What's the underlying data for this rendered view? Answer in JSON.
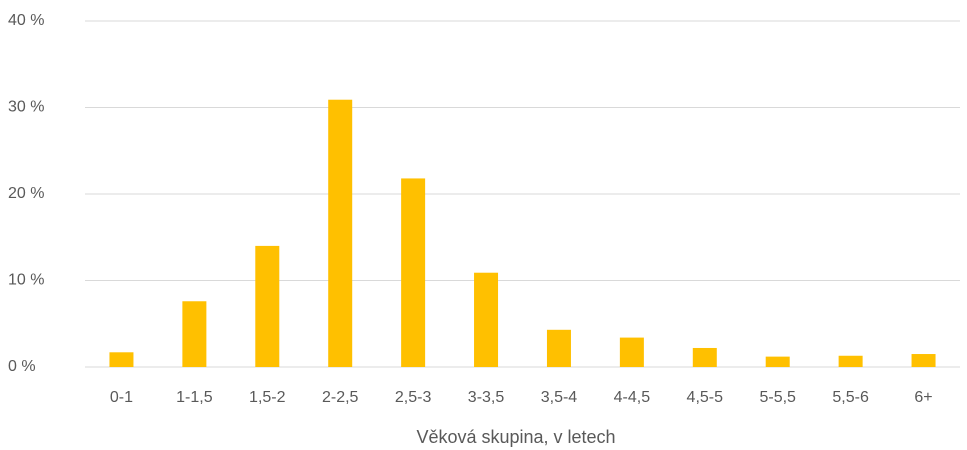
{
  "chart_data": {
    "type": "bar",
    "x_label": "Věková skupina, v letech",
    "categories": [
      "0-1",
      "1-1,5",
      "1,5-2",
      "2-2,5",
      "2,5-3",
      "3-3,5",
      "3,5-4",
      "4-4,5",
      "4,5-5",
      "5-5,5",
      "5,5-6",
      "6+"
    ],
    "values": [
      1.7,
      7.6,
      14.0,
      30.9,
      21.8,
      10.9,
      4.3,
      3.4,
      2.2,
      1.2,
      1.3,
      1.5
    ],
    "color": "#ffc000",
    "ylim": [
      0,
      40
    ],
    "yticks": [
      {
        "value": 0,
        "label": "0 %"
      },
      {
        "value": 10,
        "label": "10 %"
      },
      {
        "value": 20,
        "label": "20 %"
      },
      {
        "value": 30,
        "label": "30 %"
      },
      {
        "value": 40,
        "label": "40 %"
      }
    ],
    "grid": true
  }
}
